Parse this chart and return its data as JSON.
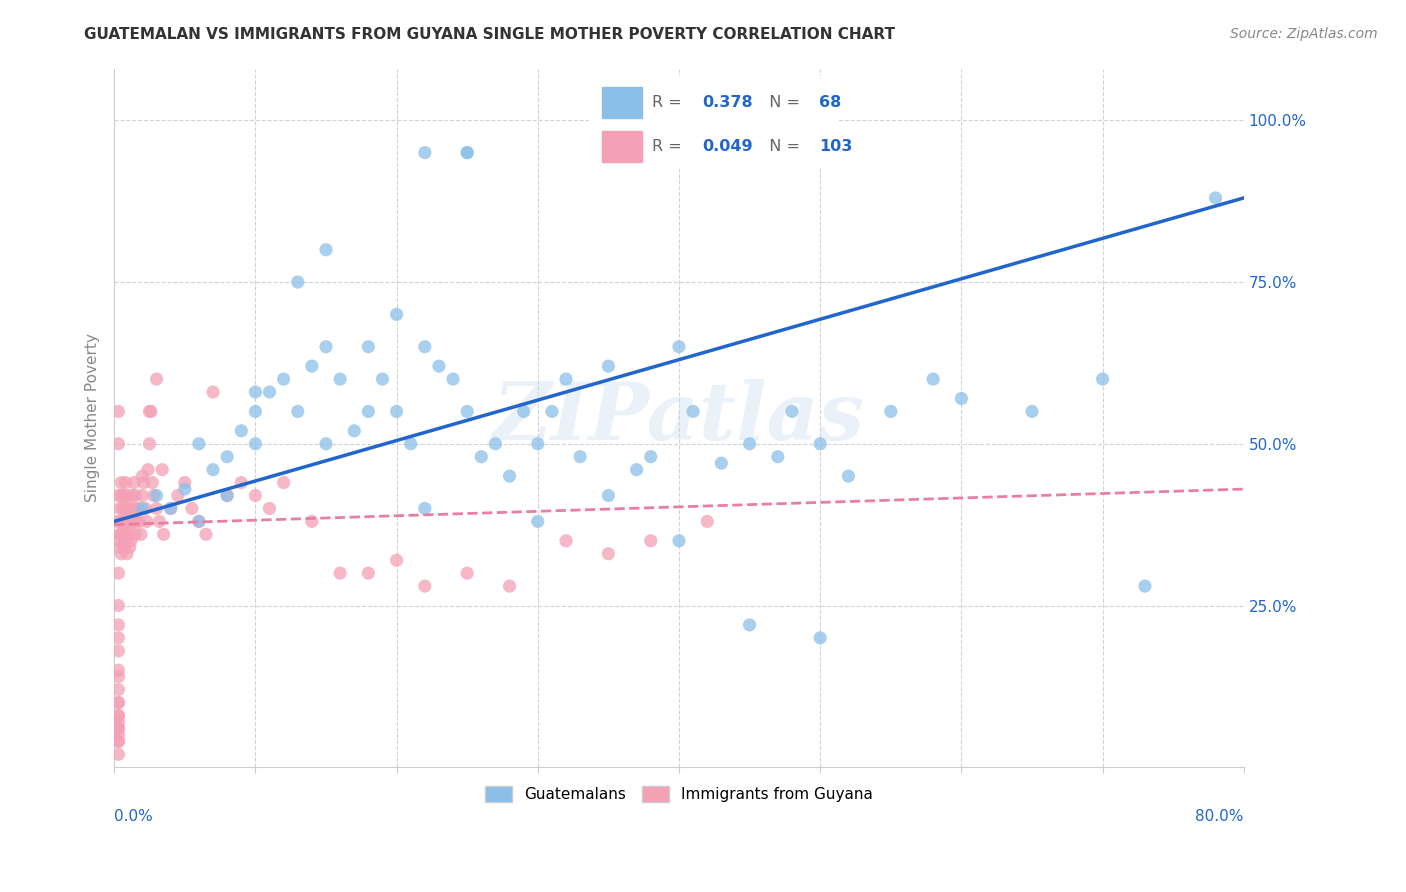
{
  "title": "GUATEMALAN VS IMMIGRANTS FROM GUYANA SINGLE MOTHER POVERTY CORRELATION CHART",
  "source": "Source: ZipAtlas.com",
  "ylabel": "Single Mother Poverty",
  "legend_label_blue": "Guatemalans",
  "legend_label_pink": "Immigrants from Guyana",
  "R_blue": 0.378,
  "N_blue": 68,
  "R_pink": 0.049,
  "N_pink": 103,
  "blue_color": "#8bbfe8",
  "pink_color": "#f4a0b5",
  "blue_line_color": "#2266cc",
  "pink_line_color": "#e87fa0",
  "watermark": "ZIPatlas",
  "xlim": [
    0.0,
    0.8
  ],
  "ylim": [
    0.0,
    1.05
  ],
  "blue_line_x0": 0.0,
  "blue_line_y0": 0.38,
  "blue_line_x1": 0.8,
  "blue_line_y1": 0.88,
  "pink_line_x0": 0.0,
  "pink_line_y0": 0.375,
  "pink_line_x1": 0.8,
  "pink_line_y1": 0.43,
  "blue_x": [
    0.02,
    0.03,
    0.05,
    0.06,
    0.07,
    0.08,
    0.09,
    0.1,
    0.1,
    0.11,
    0.12,
    0.13,
    0.14,
    0.15,
    0.15,
    0.16,
    0.17,
    0.18,
    0.19,
    0.2,
    0.21,
    0.22,
    0.23,
    0.24,
    0.25,
    0.25,
    0.26,
    0.27,
    0.28,
    0.29,
    0.3,
    0.31,
    0.32,
    0.33,
    0.35,
    0.37,
    0.38,
    0.4,
    0.41,
    0.43,
    0.45,
    0.47,
    0.48,
    0.5,
    0.52,
    0.55,
    0.58,
    0.6,
    0.65,
    0.7,
    0.73,
    0.78,
    0.22,
    0.25,
    0.2,
    0.18,
    0.15,
    0.13,
    0.1,
    0.08,
    0.06,
    0.04,
    0.22,
    0.3,
    0.35,
    0.4,
    0.45,
    0.5
  ],
  "blue_y": [
    0.4,
    0.42,
    0.43,
    0.5,
    0.46,
    0.48,
    0.52,
    0.5,
    0.55,
    0.58,
    0.6,
    0.55,
    0.62,
    0.65,
    0.5,
    0.6,
    0.52,
    0.55,
    0.6,
    0.55,
    0.5,
    0.65,
    0.62,
    0.6,
    0.55,
    0.95,
    0.48,
    0.5,
    0.45,
    0.55,
    0.5,
    0.55,
    0.6,
    0.48,
    0.62,
    0.46,
    0.48,
    0.65,
    0.55,
    0.47,
    0.5,
    0.48,
    0.55,
    0.5,
    0.45,
    0.55,
    0.6,
    0.57,
    0.55,
    0.6,
    0.28,
    0.88,
    0.95,
    0.95,
    0.7,
    0.65,
    0.8,
    0.75,
    0.58,
    0.42,
    0.38,
    0.4,
    0.4,
    0.38,
    0.42,
    0.35,
    0.22,
    0.2
  ],
  "pink_x": [
    0.002,
    0.003,
    0.003,
    0.004,
    0.004,
    0.005,
    0.005,
    0.005,
    0.005,
    0.006,
    0.006,
    0.006,
    0.007,
    0.007,
    0.007,
    0.008,
    0.008,
    0.008,
    0.009,
    0.009,
    0.01,
    0.01,
    0.01,
    0.011,
    0.011,
    0.012,
    0.012,
    0.013,
    0.013,
    0.014,
    0.015,
    0.015,
    0.016,
    0.017,
    0.018,
    0.019,
    0.02,
    0.021,
    0.022,
    0.023,
    0.024,
    0.025,
    0.026,
    0.027,
    0.028,
    0.03,
    0.032,
    0.034,
    0.035,
    0.04,
    0.045,
    0.05,
    0.055,
    0.06,
    0.065,
    0.07,
    0.08,
    0.09,
    0.1,
    0.11,
    0.12,
    0.14,
    0.16,
    0.18,
    0.2,
    0.22,
    0.25,
    0.28,
    0.32,
    0.35,
    0.38,
    0.42,
    0.03,
    0.025,
    0.02,
    0.015,
    0.01,
    0.008,
    0.006,
    0.005,
    0.004,
    0.004,
    0.003,
    0.003,
    0.003,
    0.003,
    0.003,
    0.003,
    0.003,
    0.003,
    0.003,
    0.003,
    0.003,
    0.003,
    0.003,
    0.003,
    0.003,
    0.003,
    0.003,
    0.003,
    0.003,
    0.003,
    0.003
  ],
  "pink_y": [
    0.38,
    0.42,
    0.35,
    0.4,
    0.36,
    0.38,
    0.33,
    0.42,
    0.44,
    0.36,
    0.38,
    0.42,
    0.34,
    0.37,
    0.4,
    0.35,
    0.38,
    0.42,
    0.33,
    0.4,
    0.36,
    0.38,
    0.42,
    0.34,
    0.37,
    0.4,
    0.35,
    0.42,
    0.38,
    0.44,
    0.36,
    0.4,
    0.38,
    0.4,
    0.38,
    0.36,
    0.42,
    0.44,
    0.4,
    0.38,
    0.46,
    0.5,
    0.55,
    0.44,
    0.42,
    0.4,
    0.38,
    0.46,
    0.36,
    0.4,
    0.42,
    0.44,
    0.4,
    0.38,
    0.36,
    0.58,
    0.42,
    0.44,
    0.42,
    0.4,
    0.44,
    0.38,
    0.3,
    0.3,
    0.32,
    0.28,
    0.3,
    0.28,
    0.35,
    0.33,
    0.35,
    0.38,
    0.6,
    0.55,
    0.45,
    0.42,
    0.4,
    0.44,
    0.4,
    0.38,
    0.36,
    0.34,
    0.3,
    0.25,
    0.18,
    0.12,
    0.08,
    0.05,
    0.14,
    0.1,
    0.07,
    0.06,
    0.04,
    0.02,
    0.55,
    0.5,
    0.2,
    0.22,
    0.15,
    0.1,
    0.08,
    0.06,
    0.04
  ]
}
